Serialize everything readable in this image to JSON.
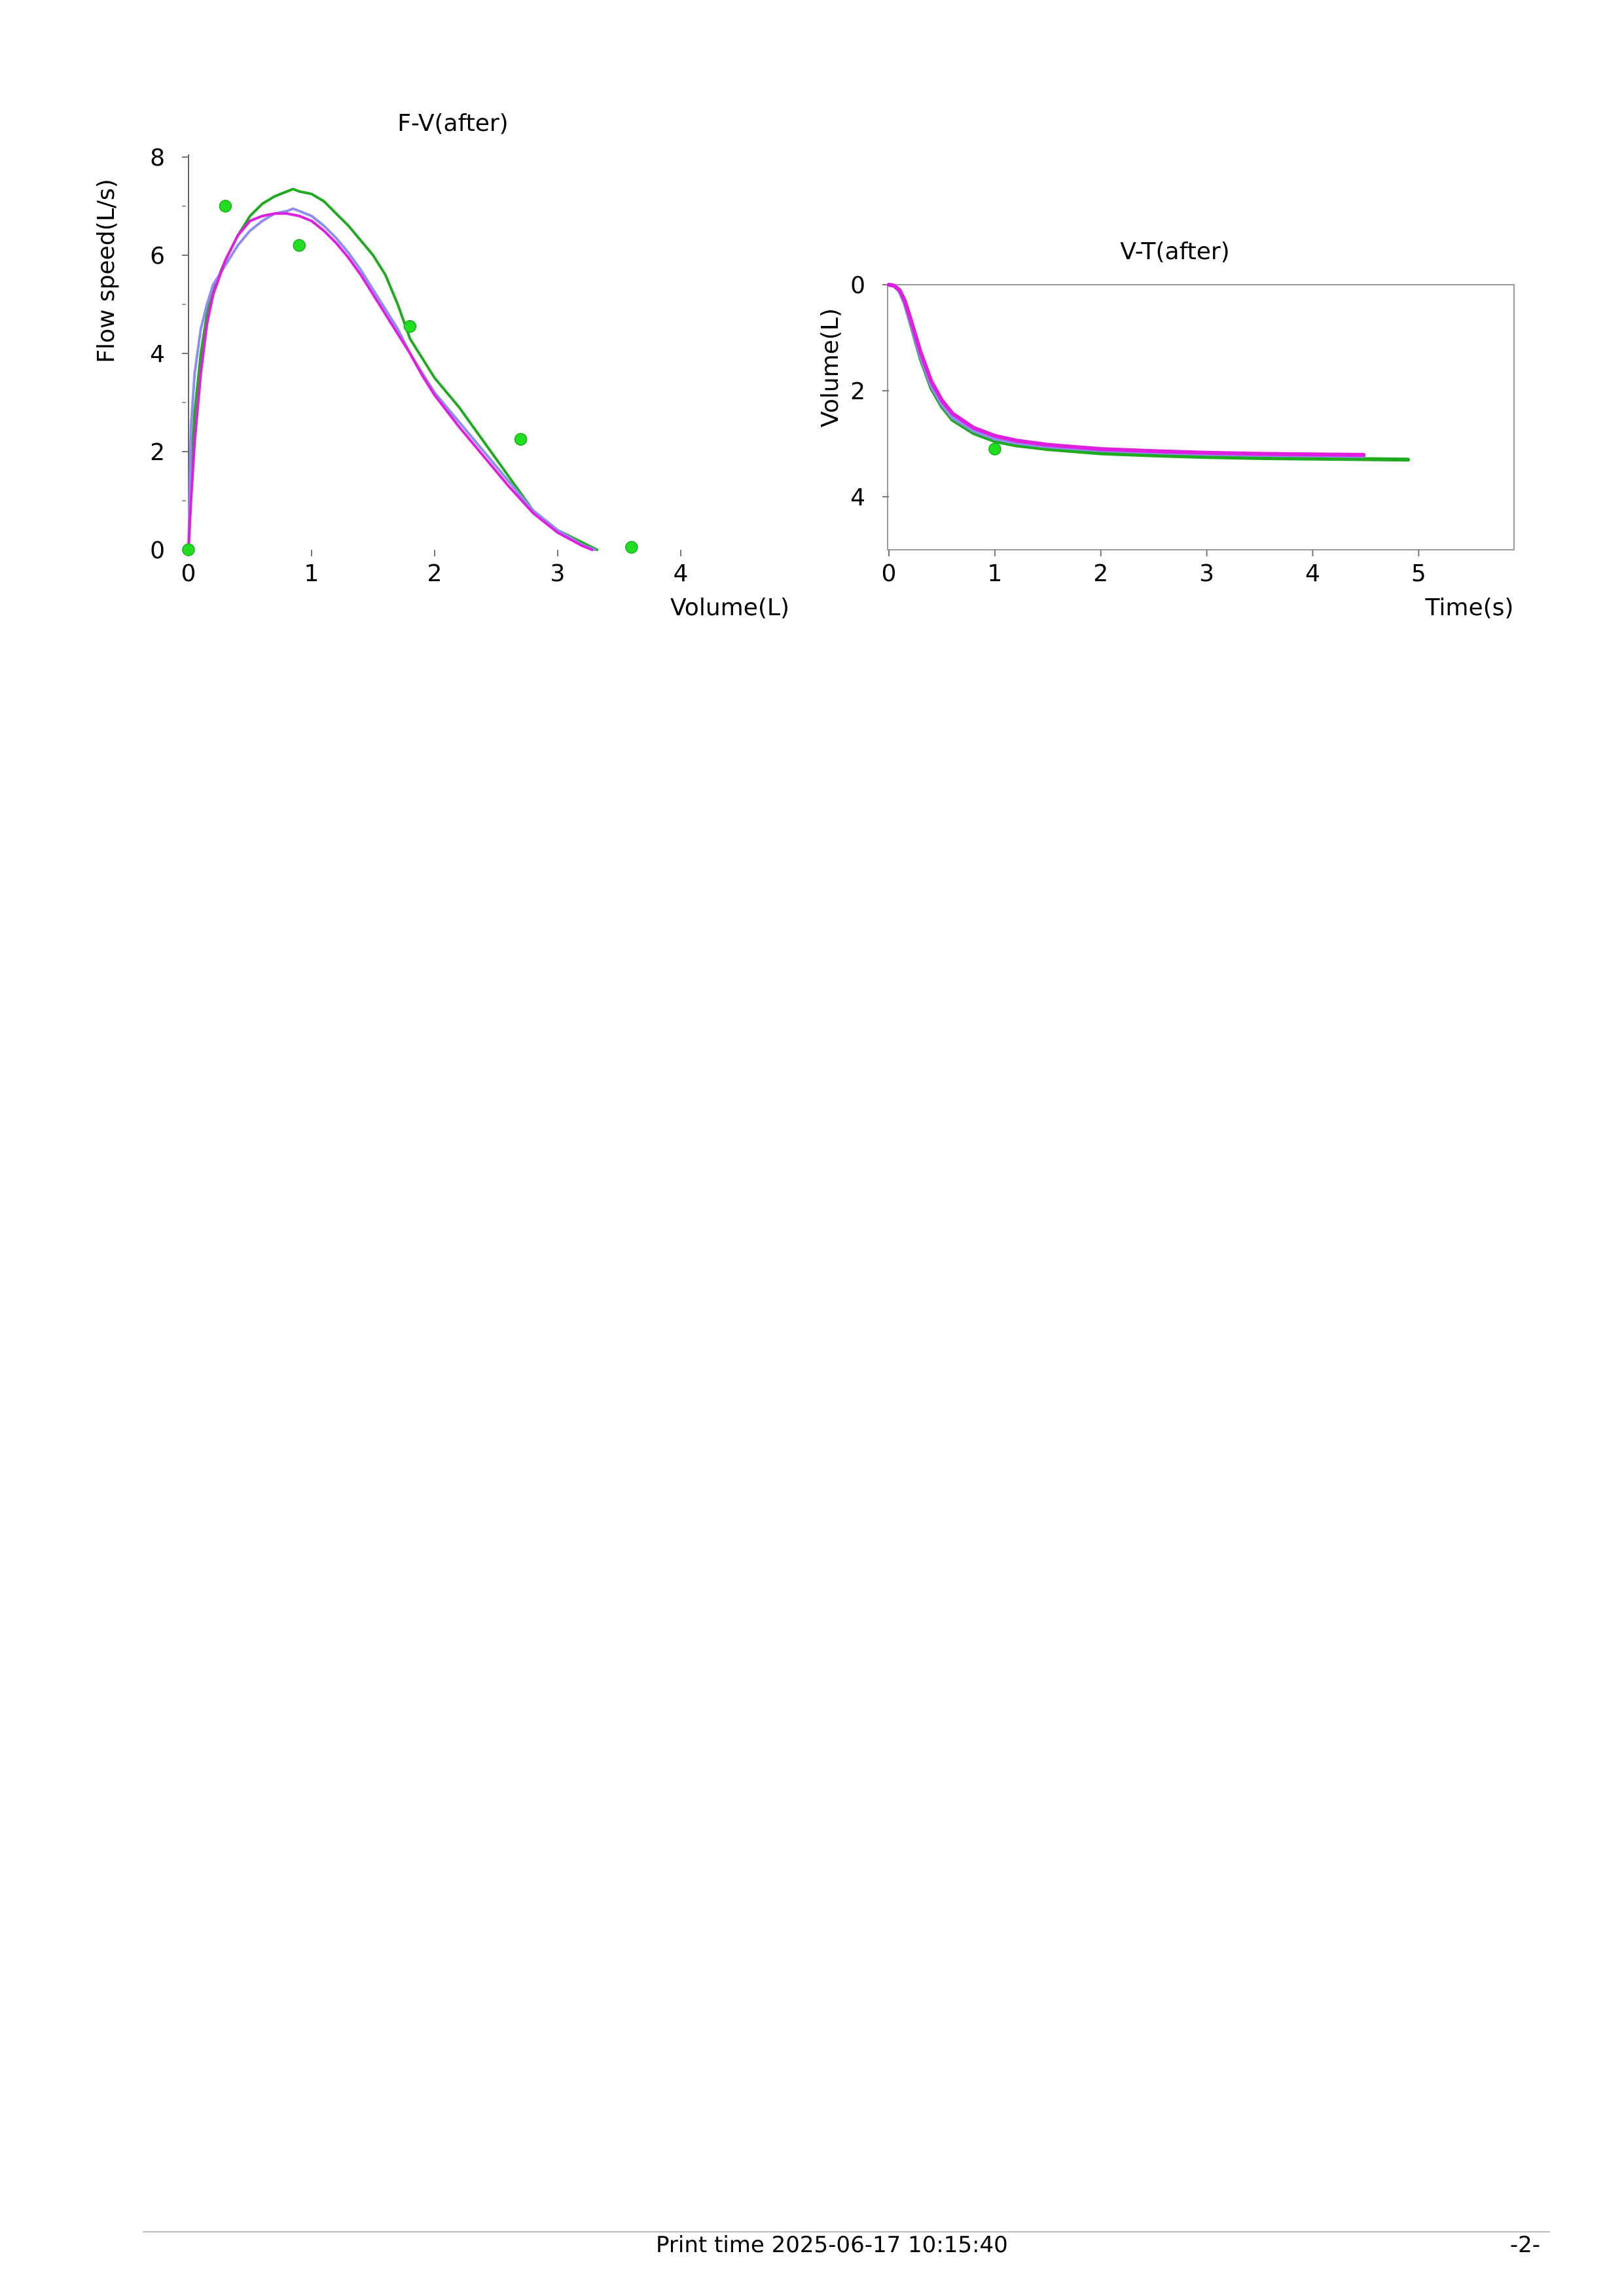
{
  "chart_data": [
    {
      "type": "line",
      "title": "F-V(after)",
      "xlabel": "Volume(L)",
      "ylabel": "Flow speed(L/s)",
      "xlim": [
        0,
        4
      ],
      "ylim": [
        0,
        8
      ],
      "xticks": [
        0,
        1,
        2,
        3,
        4
      ],
      "yticks": [
        0,
        2,
        4,
        6,
        8
      ],
      "x_tick_labels": [
        "0",
        "1",
        "2",
        "3",
        "4"
      ],
      "y_tick_labels": [
        "0",
        "2",
        "4",
        "6",
        "8"
      ],
      "grid": false,
      "series": [
        {
          "color": "#1faa1f",
          "x": [
            0.0,
            0.02,
            0.05,
            0.1,
            0.15,
            0.2,
            0.3,
            0.4,
            0.5,
            0.6,
            0.7,
            0.8,
            0.85,
            0.9,
            1.0,
            1.1,
            1.2,
            1.3,
            1.4,
            1.5,
            1.6,
            1.7,
            1.8,
            1.9,
            2.0,
            2.2,
            2.4,
            2.6,
            2.8,
            3.0,
            3.2,
            3.32
          ],
          "y": [
            0.0,
            1.5,
            2.8,
            4.0,
            4.8,
            5.3,
            5.9,
            6.4,
            6.8,
            7.05,
            7.2,
            7.3,
            7.35,
            7.3,
            7.25,
            7.1,
            6.85,
            6.6,
            6.3,
            6.0,
            5.6,
            5.0,
            4.3,
            3.9,
            3.5,
            2.9,
            2.2,
            1.5,
            0.8,
            0.4,
            0.15,
            0.0
          ]
        },
        {
          "color": "#8e8ef0",
          "x": [
            0.0,
            0.02,
            0.05,
            0.1,
            0.15,
            0.2,
            0.3,
            0.4,
            0.5,
            0.6,
            0.7,
            0.8,
            0.85,
            0.9,
            1.0,
            1.1,
            1.2,
            1.3,
            1.4,
            1.5,
            1.6,
            1.7,
            1.8,
            1.9,
            2.0,
            2.2,
            2.4,
            2.6,
            2.8,
            3.0,
            3.2,
            3.3
          ],
          "y": [
            0.0,
            2.5,
            3.6,
            4.5,
            5.0,
            5.4,
            5.8,
            6.2,
            6.5,
            6.7,
            6.85,
            6.9,
            6.95,
            6.9,
            6.8,
            6.6,
            6.35,
            6.05,
            5.7,
            5.3,
            4.9,
            4.5,
            4.0,
            3.6,
            3.2,
            2.6,
            2.0,
            1.4,
            0.8,
            0.4,
            0.1,
            0.0
          ]
        },
        {
          "color": "#e01ee0",
          "x": [
            0.0,
            0.02,
            0.05,
            0.1,
            0.15,
            0.2,
            0.3,
            0.4,
            0.5,
            0.6,
            0.7,
            0.8,
            0.9,
            1.0,
            1.1,
            1.2,
            1.3,
            1.4,
            1.5,
            1.6,
            1.7,
            1.8,
            1.9,
            2.0,
            2.2,
            2.4,
            2.6,
            2.8,
            3.0,
            3.2,
            3.28
          ],
          "y": [
            0.0,
            1.0,
            2.2,
            3.6,
            4.6,
            5.2,
            5.9,
            6.4,
            6.7,
            6.8,
            6.85,
            6.85,
            6.8,
            6.7,
            6.5,
            6.25,
            5.95,
            5.6,
            5.2,
            4.8,
            4.4,
            4.0,
            3.55,
            3.15,
            2.5,
            1.9,
            1.3,
            0.75,
            0.35,
            0.08,
            0.0
          ]
        }
      ],
      "reference_points": {
        "color": "#22dd22",
        "x": [
          0.0,
          0.3,
          0.9,
          1.8,
          2.7,
          3.6
        ],
        "y": [
          0.0,
          7.0,
          6.2,
          4.55,
          2.25,
          0.05
        ]
      }
    },
    {
      "type": "line",
      "title": "V-T(after)",
      "xlabel": "Time(s)",
      "ylabel": "Volume(L)",
      "xlim": [
        0,
        5.9
      ],
      "ylim": [
        0,
        5
      ],
      "y_inverted": true,
      "xticks": [
        0,
        1,
        2,
        3,
        4,
        5
      ],
      "yticks": [
        0,
        2,
        4
      ],
      "x_tick_labels": [
        "0",
        "1",
        "2",
        "3",
        "4",
        "5"
      ],
      "y_tick_labels": [
        "0",
        "2",
        "4"
      ],
      "grid": false,
      "series": [
        {
          "color": "#1faa1f",
          "x": [
            0.0,
            0.05,
            0.1,
            0.15,
            0.2,
            0.3,
            0.4,
            0.5,
            0.6,
            0.8,
            1.0,
            1.2,
            1.5,
            2.0,
            2.5,
            3.0,
            3.5,
            4.0,
            4.5,
            4.9
          ],
          "y": [
            0.0,
            0.02,
            0.12,
            0.35,
            0.7,
            1.4,
            1.95,
            2.3,
            2.55,
            2.8,
            2.95,
            3.03,
            3.1,
            3.18,
            3.22,
            3.25,
            3.27,
            3.28,
            3.29,
            3.3
          ]
        },
        {
          "color": "#8e8ef0",
          "x": [
            0.0,
            0.05,
            0.1,
            0.15,
            0.2,
            0.3,
            0.4,
            0.5,
            0.6,
            0.8,
            1.0,
            1.2,
            1.5,
            2.0,
            2.5,
            3.0,
            3.5,
            4.0,
            4.48
          ],
          "y": [
            0.0,
            0.02,
            0.12,
            0.33,
            0.68,
            1.35,
            1.9,
            2.25,
            2.5,
            2.75,
            2.9,
            2.98,
            3.05,
            3.12,
            3.16,
            3.19,
            3.21,
            3.22,
            3.23
          ]
        },
        {
          "color": "#e01ee0",
          "x": [
            0.0,
            0.05,
            0.1,
            0.15,
            0.2,
            0.3,
            0.4,
            0.5,
            0.6,
            0.8,
            1.0,
            1.2,
            1.5,
            2.0,
            2.5,
            3.0,
            3.5,
            4.0,
            4.48
          ],
          "y": [
            0.0,
            0.02,
            0.1,
            0.3,
            0.62,
            1.28,
            1.82,
            2.18,
            2.43,
            2.7,
            2.85,
            2.94,
            3.02,
            3.1,
            3.14,
            3.17,
            3.19,
            3.2,
            3.21
          ]
        }
      ],
      "reference_points": {
        "color": "#22dd22",
        "x": [
          1.0
        ],
        "y": [
          3.1
        ]
      }
    }
  ],
  "footer": {
    "print_time": "Print time 2025-06-17 10:15:40",
    "page_number": "-2-"
  }
}
